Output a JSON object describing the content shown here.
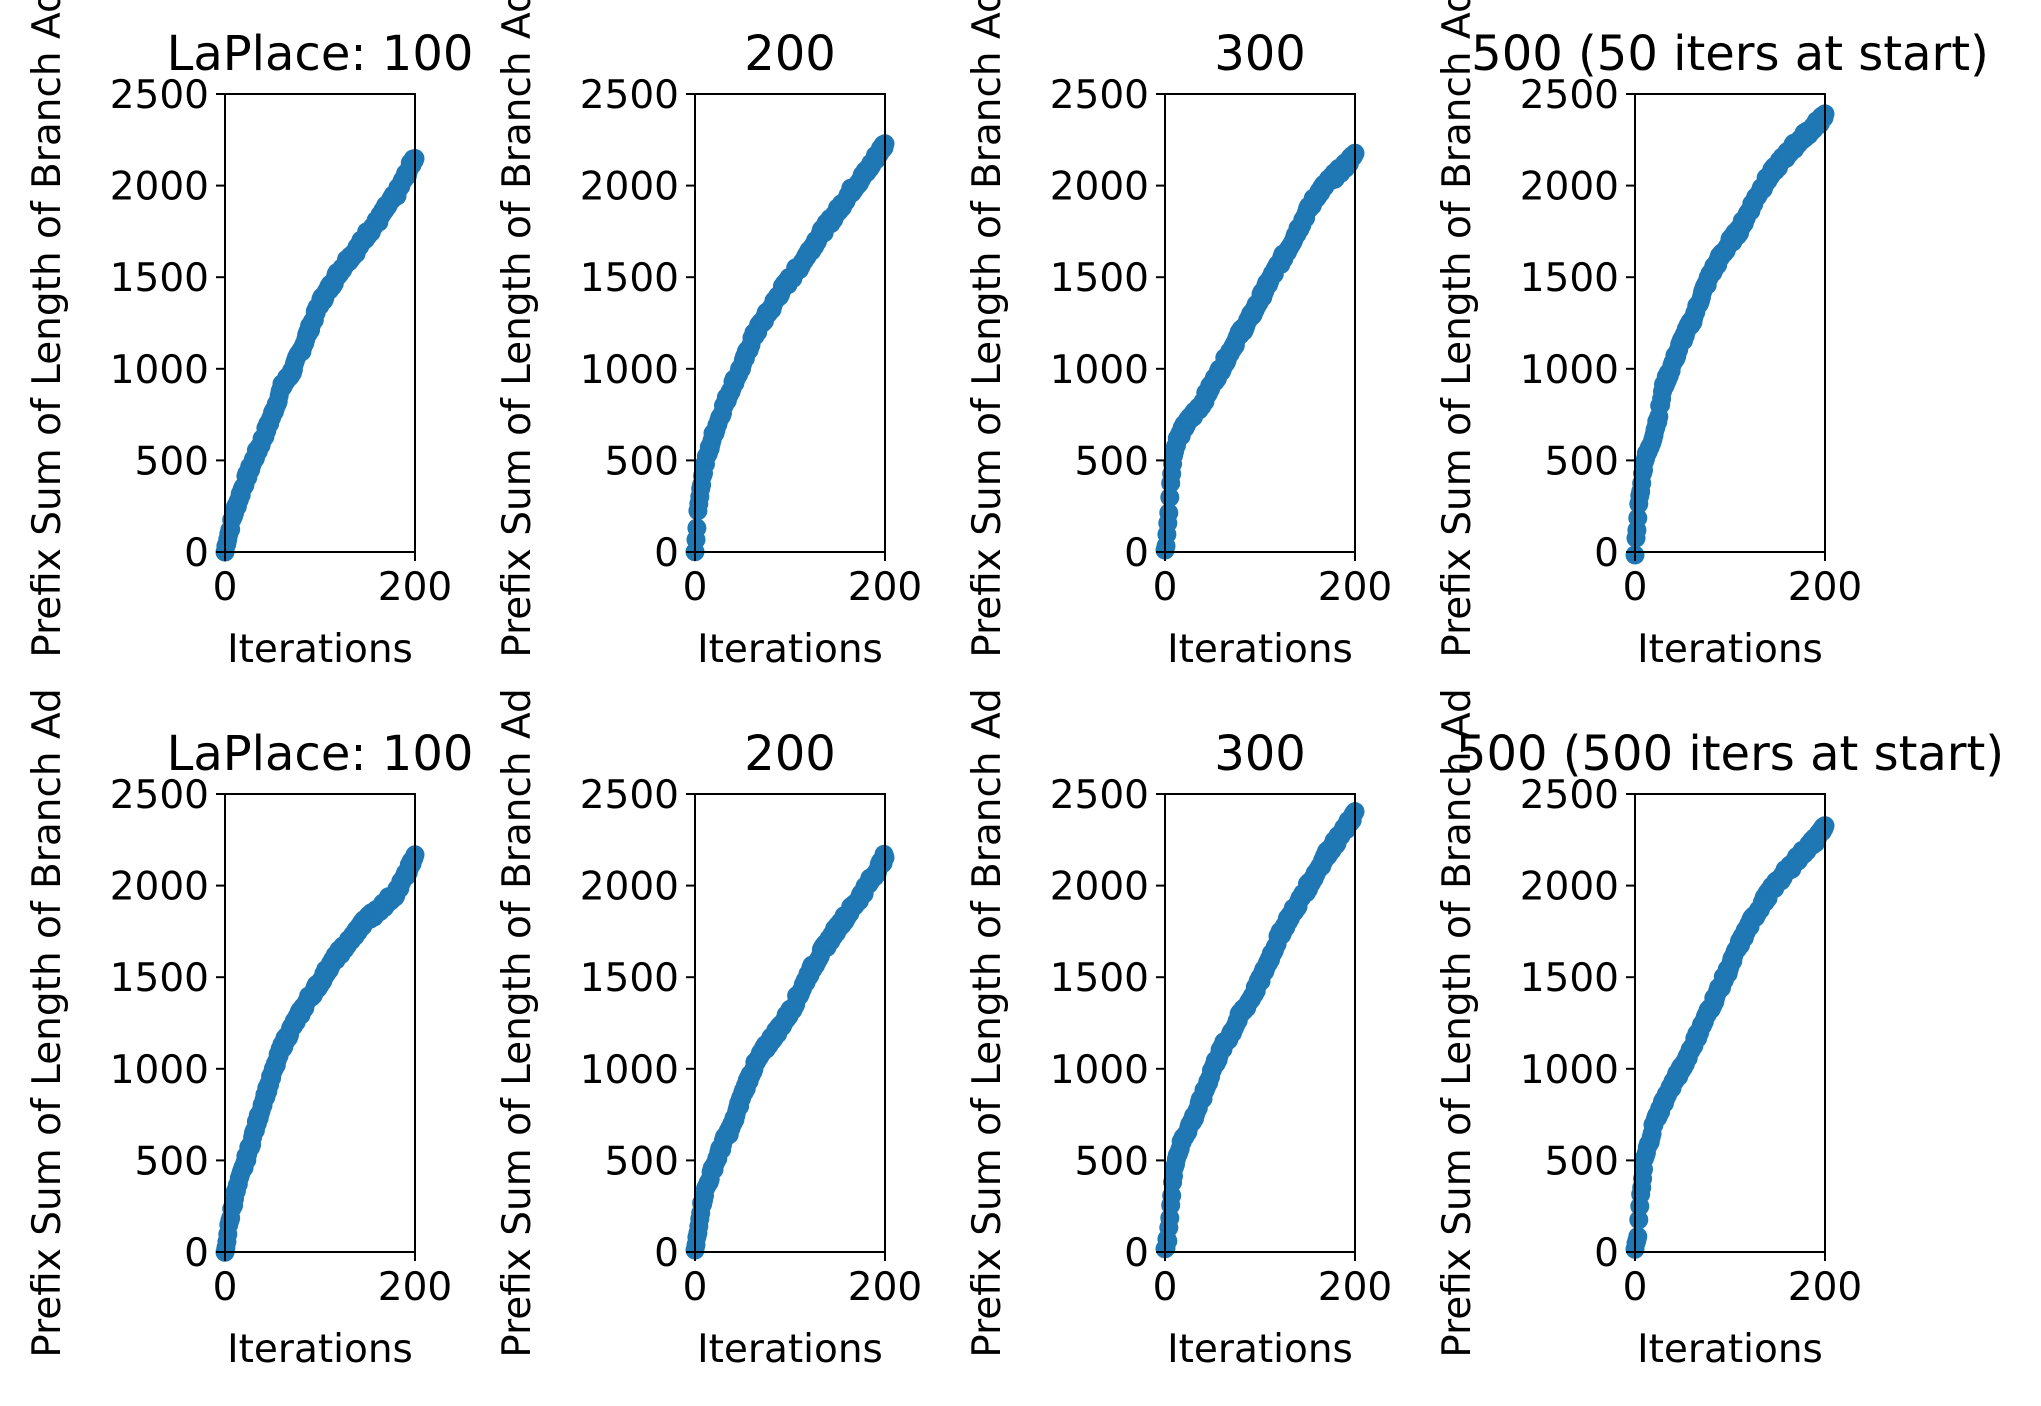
{
  "chart_data": [
    {
      "type": "scatter",
      "title": "LaPlace: 100",
      "xlabel": "Iterations",
      "ylabel": "Prefix Sum of Length of Branch Ad",
      "xlim": [
        0,
        200
      ],
      "ylim": [
        0,
        2500
      ],
      "xticks": [
        0,
        200
      ],
      "yticks": [
        0,
        500,
        1000,
        1500,
        2000,
        2500
      ],
      "series": [
        {
          "color": "#1f77b4",
          "x": [
            0,
            2,
            5,
            10,
            20,
            30,
            40,
            50,
            60,
            70,
            80,
            90,
            100,
            110,
            120,
            130,
            140,
            150,
            160,
            170,
            180,
            190,
            200
          ],
          "y": [
            0,
            60,
            120,
            220,
            370,
            500,
            620,
            750,
            900,
            980,
            1100,
            1230,
            1360,
            1440,
            1530,
            1600,
            1660,
            1740,
            1800,
            1880,
            1950,
            2050,
            2160
          ]
        }
      ]
    },
    {
      "type": "scatter",
      "title": "200",
      "xlabel": "Iterations",
      "ylabel": "Prefix Sum of Length of Branch Ad",
      "xlim": [
        0,
        200
      ],
      "ylim": [
        0,
        2500
      ],
      "xticks": [
        0,
        200
      ],
      "yticks": [
        0,
        500,
        1000,
        1500,
        2000,
        2500
      ],
      "series": [
        {
          "color": "#1f77b4",
          "x": [
            0,
            2,
            5,
            10,
            20,
            30,
            40,
            50,
            60,
            70,
            80,
            90,
            100,
            110,
            120,
            130,
            140,
            150,
            160,
            170,
            180,
            190,
            200
          ],
          "y": [
            0,
            150,
            320,
            470,
            650,
            790,
            920,
            1020,
            1160,
            1250,
            1330,
            1420,
            1490,
            1560,
            1640,
            1720,
            1790,
            1860,
            1940,
            2010,
            2070,
            2150,
            2230
          ]
        }
      ]
    },
    {
      "type": "scatter",
      "title": "300",
      "xlabel": "Iterations",
      "ylabel": "Prefix Sum of Length of Branch Ad",
      "xlim": [
        0,
        200
      ],
      "ylim": [
        0,
        2500
      ],
      "xticks": [
        0,
        200
      ],
      "yticks": [
        0,
        500,
        1000,
        1500,
        2000,
        2500
      ],
      "series": [
        {
          "color": "#1f77b4",
          "x": [
            0,
            2,
            5,
            8,
            12,
            20,
            30,
            40,
            50,
            60,
            70,
            80,
            90,
            100,
            110,
            120,
            130,
            140,
            150,
            160,
            170,
            180,
            190,
            200
          ],
          "y": [
            0,
            100,
            300,
            500,
            600,
            680,
            750,
            820,
            920,
            1010,
            1110,
            1200,
            1280,
            1380,
            1480,
            1570,
            1660,
            1760,
            1860,
            1950,
            2010,
            2060,
            2110,
            2170
          ]
        }
      ]
    },
    {
      "type": "scatter",
      "title": "500 (50 iters at start)",
      "xlabel": "Iterations",
      "ylabel": "Prefix Sum of Length of Branch Ad",
      "xlim": [
        0,
        200
      ],
      "ylim": [
        0,
        2500
      ],
      "xticks": [
        0,
        200
      ],
      "yticks": [
        0,
        500,
        1000,
        1500,
        2000,
        2500
      ],
      "series": [
        {
          "color": "#1f77b4",
          "x": [
            0,
            3,
            6,
            10,
            15,
            20,
            25,
            30,
            40,
            50,
            60,
            70,
            80,
            90,
            100,
            110,
            120,
            130,
            140,
            150,
            160,
            170,
            180,
            190,
            200
          ],
          "y": [
            0,
            200,
            350,
            500,
            560,
            650,
            750,
            900,
            1030,
            1160,
            1260,
            1400,
            1520,
            1610,
            1690,
            1760,
            1860,
            1960,
            2040,
            2110,
            2170,
            2230,
            2280,
            2330,
            2380
          ]
        }
      ]
    },
    {
      "type": "scatter",
      "title": "LaPlace: 100",
      "xlabel": "Iterations",
      "ylabel": "Prefix Sum of Length of Branch Ad",
      "xlim": [
        0,
        200
      ],
      "ylim": [
        0,
        2500
      ],
      "xticks": [
        0,
        200
      ],
      "yticks": [
        0,
        500,
        1000,
        1500,
        2000,
        2500
      ],
      "series": [
        {
          "color": "#1f77b4",
          "x": [
            0,
            3,
            6,
            10,
            20,
            30,
            40,
            50,
            60,
            70,
            80,
            90,
            100,
            110,
            120,
            130,
            140,
            150,
            160,
            170,
            180,
            190,
            200
          ],
          "y": [
            0,
            100,
            200,
            300,
            470,
            640,
            820,
            970,
            1120,
            1220,
            1310,
            1400,
            1470,
            1560,
            1630,
            1690,
            1760,
            1820,
            1860,
            1910,
            1960,
            2050,
            2160
          ]
        }
      ]
    },
    {
      "type": "scatter",
      "title": "200",
      "xlabel": "Iterations",
      "ylabel": "Prefix Sum of Length of Branch Ad",
      "xlim": [
        0,
        200
      ],
      "ylim": [
        0,
        2500
      ],
      "xticks": [
        0,
        200
      ],
      "yticks": [
        0,
        500,
        1000,
        1500,
        2000,
        2500
      ],
      "series": [
        {
          "color": "#1f77b4",
          "x": [
            0,
            3,
            6,
            10,
            20,
            30,
            40,
            50,
            60,
            70,
            80,
            90,
            100,
            110,
            120,
            130,
            140,
            150,
            160,
            170,
            180,
            190,
            200
          ],
          "y": [
            0,
            120,
            230,
            320,
            470,
            600,
            700,
            860,
            990,
            1080,
            1160,
            1230,
            1310,
            1410,
            1520,
            1610,
            1690,
            1770,
            1840,
            1910,
            1990,
            2070,
            2160
          ]
        }
      ]
    },
    {
      "type": "scatter",
      "title": "300",
      "xlabel": "Iterations",
      "ylabel": "Prefix Sum of Length of Branch Ad",
      "xlim": [
        0,
        200
      ],
      "ylim": [
        0,
        2500
      ],
      "xticks": [
        0,
        200
      ],
      "yticks": [
        0,
        500,
        1000,
        1500,
        2000,
        2500
      ],
      "series": [
        {
          "color": "#1f77b4",
          "x": [
            0,
            3,
            6,
            10,
            15,
            20,
            30,
            40,
            50,
            60,
            70,
            80,
            90,
            100,
            110,
            120,
            130,
            140,
            150,
            160,
            170,
            180,
            190,
            200
          ],
          "y": [
            0,
            80,
            250,
            480,
            560,
            630,
            730,
            850,
            1000,
            1110,
            1200,
            1300,
            1380,
            1480,
            1600,
            1720,
            1820,
            1900,
            1990,
            2080,
            2170,
            2240,
            2310,
            2400
          ]
        }
      ]
    },
    {
      "type": "scatter",
      "title": "500 (500 iters at start)",
      "xlabel": "Iterations",
      "ylabel": "Prefix Sum of Length of Branch Ad",
      "xlim": [
        0,
        200
      ],
      "ylim": [
        0,
        2500
      ],
      "xticks": [
        0,
        200
      ],
      "yticks": [
        0,
        500,
        1000,
        1500,
        2000,
        2500
      ],
      "series": [
        {
          "color": "#1f77b4",
          "x": [
            0,
            3,
            6,
            10,
            15,
            20,
            30,
            40,
            50,
            60,
            70,
            80,
            90,
            100,
            110,
            120,
            130,
            140,
            150,
            160,
            170,
            180,
            190,
            200
          ],
          "y": [
            0,
            100,
            300,
            500,
            600,
            700,
            820,
            920,
            1010,
            1120,
            1230,
            1340,
            1450,
            1560,
            1680,
            1780,
            1870,
            1950,
            2020,
            2080,
            2140,
            2200,
            2250,
            2330
          ]
        }
      ]
    }
  ]
}
